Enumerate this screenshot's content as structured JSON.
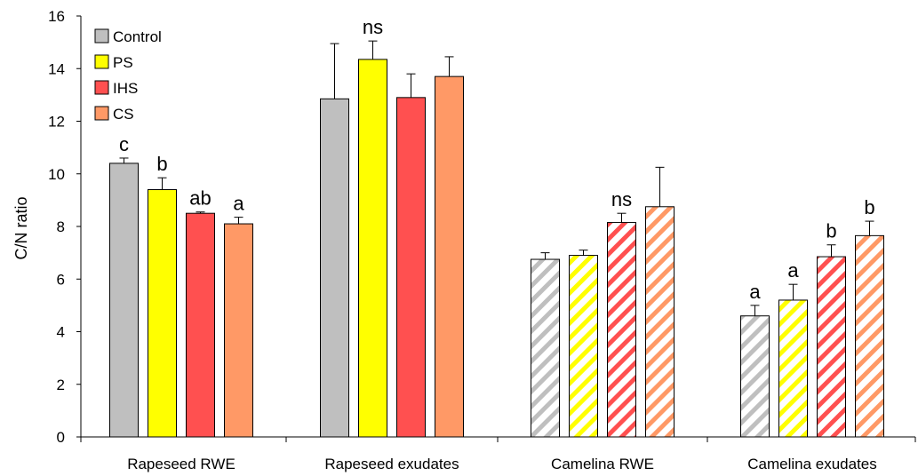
{
  "chart_data": {
    "type": "bar",
    "title": "",
    "xlabel": "",
    "ylabel": "C/N ratio",
    "ylim": [
      0,
      16
    ],
    "yticks": [
      0,
      2,
      4,
      6,
      8,
      10,
      12,
      14,
      16
    ],
    "grid": false,
    "legend_position": "top-left",
    "categories": [
      "Rapeseed RWE",
      "Rapeseed exudates",
      "Camelina RWE",
      "Camelina exudates"
    ],
    "hatched_categories": [
      "Camelina RWE",
      "Camelina exudates"
    ],
    "series": [
      {
        "name": "Control",
        "color": "#bfbfbf",
        "values": [
          10.4,
          12.85,
          6.75,
          4.6
        ],
        "errors": [
          0.2,
          2.1,
          0.25,
          0.4
        ]
      },
      {
        "name": "PS",
        "color": "#ffff00",
        "values": [
          9.4,
          14.35,
          6.9,
          5.2
        ],
        "errors": [
          0.45,
          0.7,
          0.2,
          0.6
        ]
      },
      {
        "name": "IHS",
        "color": "#ff5050",
        "values": [
          8.5,
          12.9,
          8.15,
          6.85
        ],
        "errors": [
          0.05,
          0.9,
          0.35,
          0.45
        ]
      },
      {
        "name": "CS",
        "color": "#ff9966",
        "values": [
          8.1,
          13.7,
          8.75,
          7.65
        ],
        "errors": [
          0.25,
          0.75,
          1.5,
          0.55
        ]
      }
    ],
    "significance_letters": [
      [
        "c",
        "b",
        "ab",
        "a"
      ],
      [
        "",
        "ns",
        "",
        ""
      ],
      [
        "",
        "",
        "ns",
        ""
      ],
      [
        "a",
        "a",
        "b",
        "b"
      ]
    ]
  }
}
